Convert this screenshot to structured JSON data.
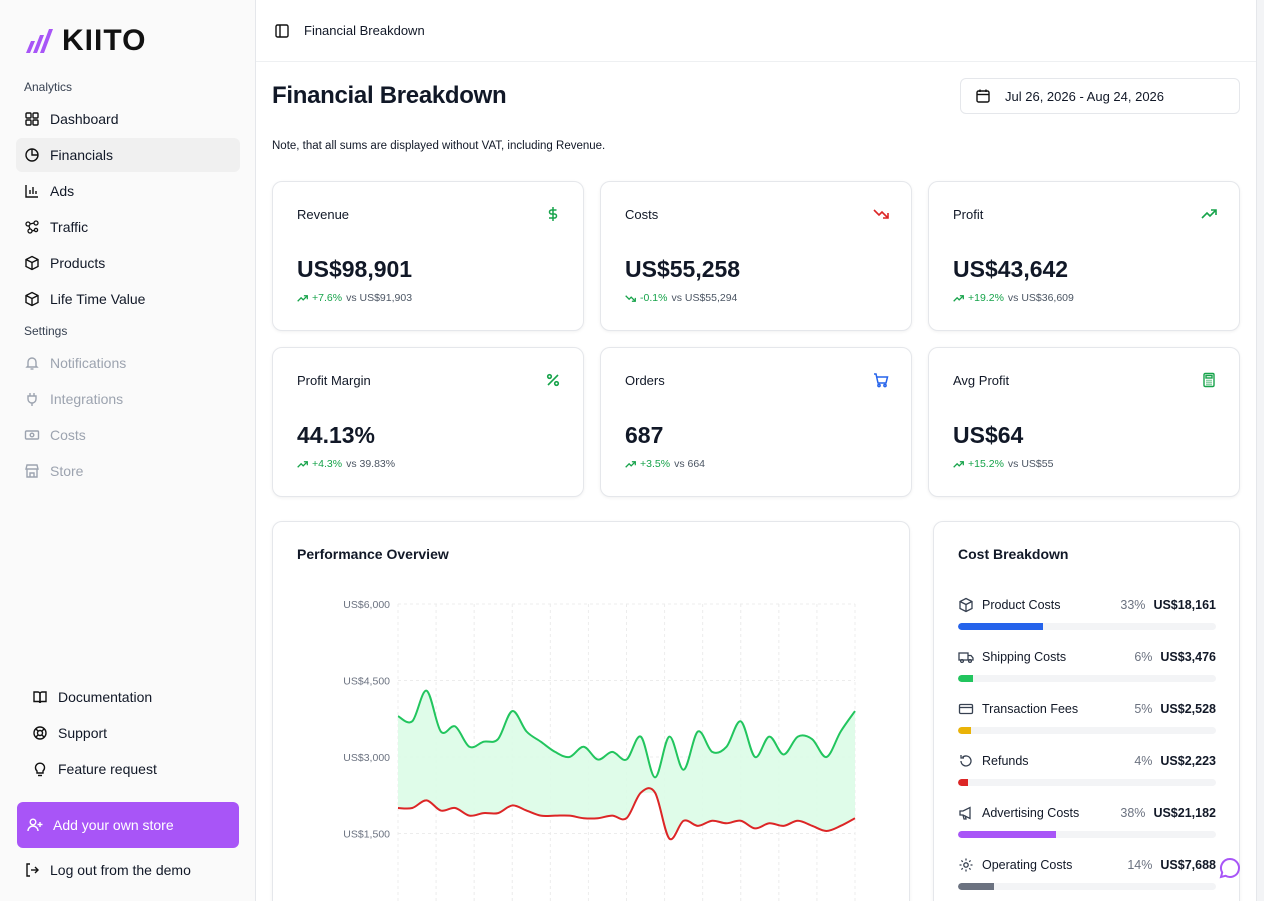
{
  "brand": {
    "name": "KIITO",
    "accent": "#a855f7"
  },
  "sidebar": {
    "analytics_label": "Analytics",
    "analytics_items": [
      {
        "label": "Dashboard",
        "icon": "grid-icon"
      },
      {
        "label": "Financials",
        "icon": "pie-chart-icon",
        "active": true
      },
      {
        "label": "Ads",
        "icon": "bar-chart-icon"
      },
      {
        "label": "Traffic",
        "icon": "network-icon"
      },
      {
        "label": "Products",
        "icon": "box-icon"
      },
      {
        "label": "Life Time Value",
        "icon": "box-icon"
      }
    ],
    "settings_label": "Settings",
    "settings_items": [
      {
        "label": "Notifications",
        "icon": "bell-icon"
      },
      {
        "label": "Integrations",
        "icon": "plug-icon"
      },
      {
        "label": "Costs",
        "icon": "money-icon"
      },
      {
        "label": "Store",
        "icon": "store-icon"
      }
    ],
    "footer_items": [
      {
        "label": "Documentation",
        "icon": "book-icon"
      },
      {
        "label": "Support",
        "icon": "lifebuoy-icon"
      },
      {
        "label": "Feature request",
        "icon": "lightbulb-icon"
      }
    ],
    "add_store_label": "Add your own store",
    "logout_label": "Log out from the demo"
  },
  "topbar": {
    "breadcrumb": "Financial Breakdown"
  },
  "page": {
    "title": "Financial Breakdown",
    "date_range": "Jul 26, 2026 - Aug 24, 2026",
    "note": "Note, that all sums are displayed without VAT, including Revenue."
  },
  "kpis": [
    {
      "title": "Revenue",
      "value": "US$98,901",
      "delta": "+7.6%",
      "vs": "vs US$91,903",
      "icon": "dollar-icon",
      "icon_color": "#16a34a",
      "trend": "up"
    },
    {
      "title": "Costs",
      "value": "US$55,258",
      "delta": "-0.1%",
      "vs": "vs US$55,294",
      "icon": "trending-down-icon",
      "icon_color": "#dc2626",
      "trend": "down"
    },
    {
      "title": "Profit",
      "value": "US$43,642",
      "delta": "+19.2%",
      "vs": "vs US$36,609",
      "icon": "trending-up-icon",
      "icon_color": "#16a34a",
      "trend": "up"
    },
    {
      "title": "Profit Margin",
      "value": "44.13%",
      "delta": "+4.3%",
      "vs": "vs 39.83%",
      "icon": "percent-icon",
      "icon_color": "#16a34a",
      "trend": "up"
    },
    {
      "title": "Orders",
      "value": "687",
      "delta": "+3.5%",
      "vs": "vs 664",
      "icon": "cart-icon",
      "icon_color": "#2563eb",
      "trend": "up"
    },
    {
      "title": "Avg Profit",
      "value": "US$64",
      "delta": "+15.2%",
      "vs": "vs US$55",
      "icon": "calculator-icon",
      "icon_color": "#16a34a",
      "trend": "up"
    }
  ],
  "performance": {
    "title": "Performance Overview",
    "chart_data": {
      "type": "area",
      "ylim": [
        0,
        6000
      ],
      "y_ticks": [
        "US$6,000",
        "US$4,500",
        "US$3,000",
        "US$1,500"
      ],
      "y_tick_values": [
        6000,
        4500,
        3000,
        1500
      ],
      "grid": true,
      "series": [
        {
          "color": "#22c55e",
          "values": [
            3800,
            3700,
            4300,
            3500,
            3600,
            3200,
            3300,
            3350,
            3900,
            3500,
            3300,
            3100,
            3000,
            3200,
            2950,
            3100,
            2950,
            3400,
            2600,
            3400,
            2750,
            3500,
            3100,
            3200,
            3700,
            3000,
            3400,
            3050,
            3400,
            3350,
            3000,
            3500,
            3900
          ]
        },
        {
          "color": "#dc2626",
          "values": [
            2000,
            2000,
            2150,
            1950,
            2000,
            1850,
            1900,
            1900,
            2050,
            1950,
            1850,
            1850,
            1850,
            1800,
            1800,
            1850,
            1800,
            2300,
            2300,
            1400,
            1750,
            1650,
            1750,
            1700,
            1750,
            1600,
            1700,
            1650,
            1750,
            1650,
            1550,
            1650,
            1800
          ]
        }
      ]
    }
  },
  "cost_breakdown": {
    "title": "Cost Breakdown",
    "items": [
      {
        "label": "Product Costs",
        "pct": "33%",
        "amount": "US$18,161",
        "fill": 0.33,
        "color": "#2563eb",
        "icon": "box-icon"
      },
      {
        "label": "Shipping Costs",
        "pct": "6%",
        "amount": "US$3,476",
        "fill": 0.06,
        "color": "#22c55e",
        "icon": "truck-icon"
      },
      {
        "label": "Transaction Fees",
        "pct": "5%",
        "amount": "US$2,528",
        "fill": 0.05,
        "color": "#eab308",
        "icon": "credit-card-icon"
      },
      {
        "label": "Refunds",
        "pct": "4%",
        "amount": "US$2,223",
        "fill": 0.04,
        "color": "#dc2626",
        "icon": "refund-icon"
      },
      {
        "label": "Advertising Costs",
        "pct": "38%",
        "amount": "US$21,182",
        "fill": 0.38,
        "color": "#a855f7",
        "icon": "megaphone-icon"
      },
      {
        "label": "Operating Costs",
        "pct": "14%",
        "amount": "US$7,688",
        "fill": 0.14,
        "color": "#6b7280",
        "icon": "gear-icon"
      }
    ]
  }
}
